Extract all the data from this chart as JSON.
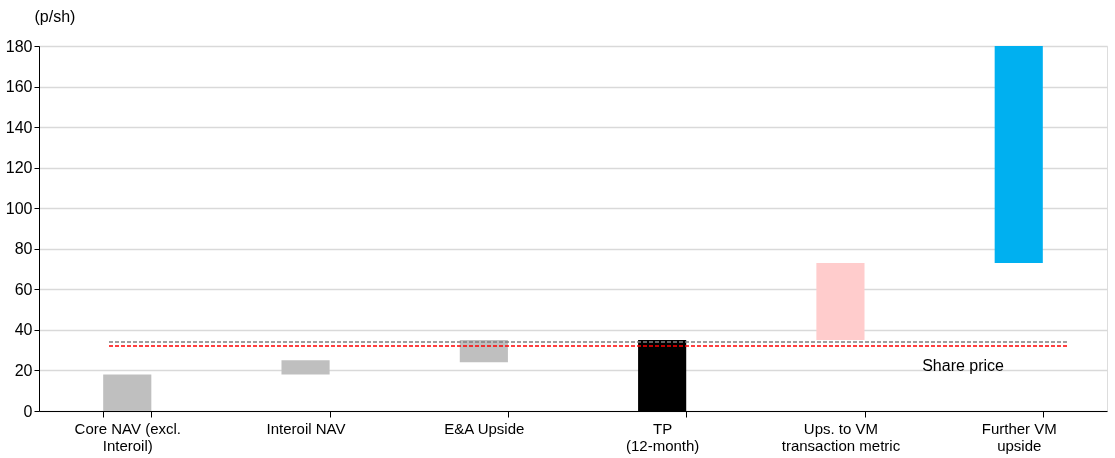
{
  "chart_data": {
    "type": "bar",
    "ylabel": "(p/sh)",
    "categories": [
      "Core NAV (excl.\nInteroil)",
      "Interoil NAV",
      "E&A Upside",
      "TP\n(12-month)",
      "Ups. to VM\ntransaction metric",
      "Further VM\nupside"
    ],
    "values": [
      18,
      7,
      11,
      35,
      38,
      107
    ],
    "base": [
      0,
      18,
      24,
      0,
      35,
      73
    ],
    "colors": [
      "#bfbfbf",
      "#bfbfbf",
      "#bfbfbf",
      "#000000",
      "#ffcccc",
      "#00b0f0"
    ],
    "ylim": [
      0,
      180
    ],
    "yticks": [
      0,
      20,
      40,
      60,
      80,
      100,
      120,
      140,
      160,
      180
    ],
    "grid": "y",
    "ref_lines": [
      {
        "axis": "y",
        "value": 34,
        "label": null,
        "color": "#808080",
        "line_style": "dashed"
      },
      {
        "axis": "y",
        "value": 32,
        "label": "Share price",
        "color": "#ff0000",
        "line_style": "dashed"
      }
    ]
  }
}
